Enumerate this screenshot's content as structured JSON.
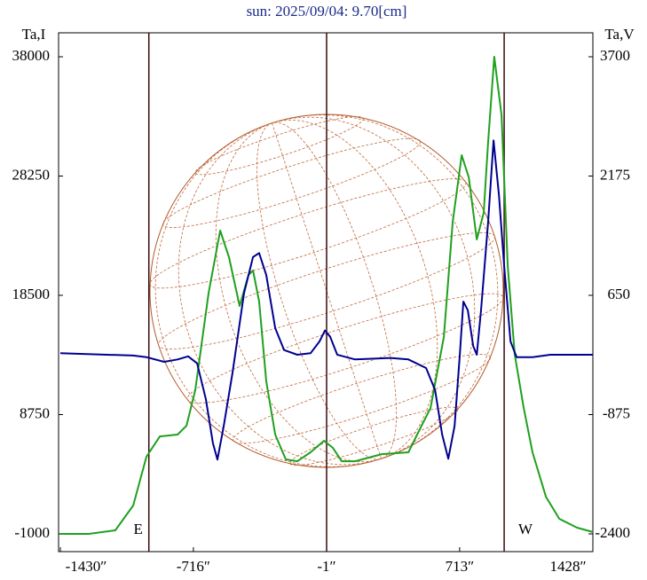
{
  "chart_data": {
    "type": "line",
    "title": "sun: 2025/09/04: 9.70[cm]",
    "y_label": "Ta,I",
    "y2_label": "Ta,V",
    "xlim": [
      -1430,
      1428
    ],
    "xticks": [
      {
        "value": -1430,
        "label": "-1430″"
      },
      {
        "value": -716,
        "label": "-716″"
      },
      {
        "value": -1,
        "label": "-1″"
      },
      {
        "value": 713,
        "label": "713″"
      },
      {
        "value": 1428,
        "label": "1428″"
      }
    ],
    "ylim": [
      -1000,
      38000
    ],
    "yticks": [
      -1000,
      8750,
      18500,
      28250,
      38000
    ],
    "y2lim": [
      -2400,
      3700
    ],
    "y2ticks": [
      -2400,
      -875,
      650,
      2175,
      3700
    ],
    "vlines": [
      -955,
      -1,
      952
    ],
    "annotations": [
      "E",
      "W"
    ],
    "series": [
      {
        "name": "Ta,I",
        "color": "#1fa01f",
        "x": [
          -1430,
          -1278,
          -1135,
          -1039,
          -968,
          -896,
          -801,
          -753,
          -706,
          -634,
          -572,
          -525,
          -468,
          -420,
          -396,
          -363,
          -325,
          -277,
          -220,
          -158,
          -87,
          -15,
          33,
          80,
          152,
          295,
          438,
          485,
          557,
          628,
          676,
          724,
          762,
          805,
          842,
          866,
          899,
          938,
          971,
          1009,
          1057,
          1104,
          1176,
          1248,
          1343,
          1428
        ],
        "values": [
          -1000,
          -1000,
          -710,
          1320,
          5310,
          6970,
          7120,
          7840,
          10740,
          18720,
          23790,
          21620,
          17630,
          20170,
          20530,
          17990,
          11470,
          7120,
          5090,
          4940,
          5670,
          6610,
          6030,
          4940,
          4940,
          5520,
          5670,
          7120,
          9290,
          15090,
          24520,
          29950,
          28140,
          23070,
          25240,
          31040,
          38000,
          33220,
          20890,
          13640,
          9290,
          5670,
          2040,
          230,
          -490,
          -850
        ]
      },
      {
        "name": "Ta,V",
        "color": "#000090",
        "axis": "y2",
        "x": [
          -1430,
          -1039,
          -968,
          -873,
          -801,
          -744,
          -696,
          -649,
          -611,
          -587,
          -553,
          -506,
          -444,
          -396,
          -363,
          -325,
          -277,
          -229,
          -158,
          -87,
          -39,
          -10,
          18,
          56,
          152,
          342,
          438,
          533,
          581,
          619,
          652,
          686,
          714,
          733,
          757,
          786,
          805,
          828,
          866,
          895,
          924,
          952,
          986,
          1019,
          1104,
          1200,
          1295,
          1428
        ],
        "values": [
          -90,
          -120,
          -140,
          -200,
          -170,
          -130,
          -220,
          -680,
          -1240,
          -1450,
          -1020,
          -340,
          680,
          1140,
          1190,
          910,
          230,
          -50,
          -110,
          -90,
          60,
          200,
          120,
          -110,
          -170,
          -150,
          -170,
          -280,
          -560,
          -1130,
          -1440,
          -1020,
          -110,
          570,
          460,
          0,
          -110,
          460,
          1590,
          2630,
          1930,
          1020,
          60,
          -140,
          -140,
          -110,
          -110,
          -110
        ]
      }
    ]
  }
}
